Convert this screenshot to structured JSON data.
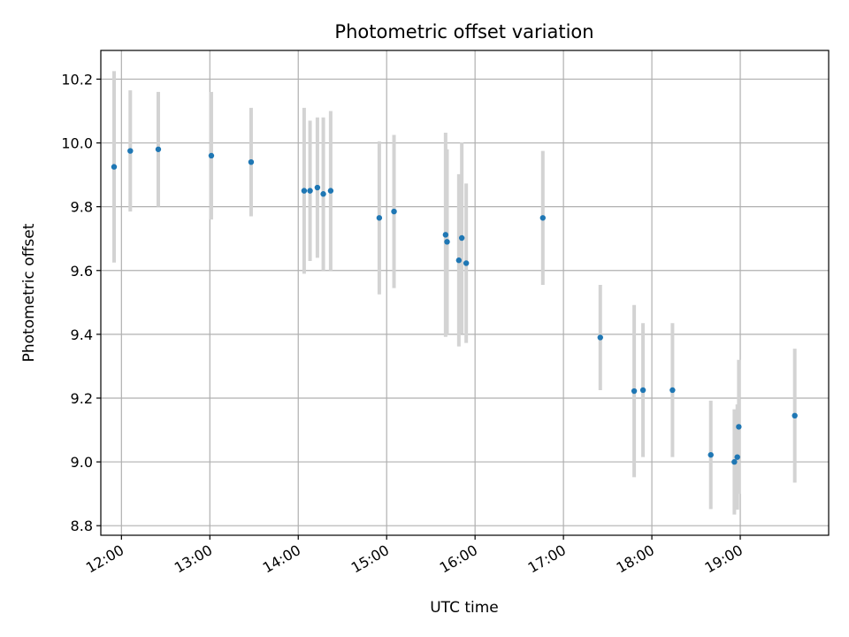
{
  "chart_data": {
    "type": "scatter",
    "title": "Photometric offset variation",
    "xlabel": "UTC time",
    "ylabel": "Photometric offset",
    "xlim": [
      "11:46",
      "20:00"
    ],
    "ylim": [
      8.77,
      10.29
    ],
    "x_ticks": [
      "12:00",
      "13:00",
      "14:00",
      "15:00",
      "16:00",
      "17:00",
      "18:00",
      "19:00"
    ],
    "y_ticks": [
      8.8,
      9.0,
      9.2,
      9.4,
      9.6,
      9.8,
      10.0,
      10.2
    ],
    "grid": true,
    "colors": {
      "point": "#1f77b4",
      "errorbar": "#d3d3d3"
    },
    "points": [
      {
        "x": "11:55",
        "y": 9.925,
        "err": 0.3
      },
      {
        "x": "12:06",
        "y": 9.975,
        "err": 0.19
      },
      {
        "x": "12:25",
        "y": 9.98,
        "err": 0.18
      },
      {
        "x": "13:01",
        "y": 9.96,
        "err": 0.2
      },
      {
        "x": "13:28",
        "y": 9.94,
        "err": 0.17
      },
      {
        "x": "14:04",
        "y": 9.85,
        "err": 0.26
      },
      {
        "x": "14:08",
        "y": 9.85,
        "err": 0.22
      },
      {
        "x": "14:13",
        "y": 9.86,
        "err": 0.22
      },
      {
        "x": "14:17",
        "y": 9.84,
        "err": 0.24
      },
      {
        "x": "14:22",
        "y": 9.85,
        "err": 0.25
      },
      {
        "x": "14:55",
        "y": 9.765,
        "err": 0.24
      },
      {
        "x": "15:05",
        "y": 9.785,
        "err": 0.24
      },
      {
        "x": "15:40",
        "y": 9.712,
        "err": 0.32
      },
      {
        "x": "15:41",
        "y": 9.69,
        "err": 0.29
      },
      {
        "x": "15:49",
        "y": 9.632,
        "err": 0.27
      },
      {
        "x": "15:51",
        "y": 9.702,
        "err": 0.3
      },
      {
        "x": "15:54",
        "y": 9.623,
        "err": 0.25
      },
      {
        "x": "16:46",
        "y": 9.765,
        "err": 0.21
      },
      {
        "x": "17:25",
        "y": 9.39,
        "err": 0.165
      },
      {
        "x": "17:48",
        "y": 9.222,
        "err": 0.27
      },
      {
        "x": "17:54",
        "y": 9.225,
        "err": 0.21
      },
      {
        "x": "18:14",
        "y": 9.225,
        "err": 0.21
      },
      {
        "x": "18:40",
        "y": 9.022,
        "err": 0.17
      },
      {
        "x": "18:56",
        "y": 9.0,
        "err": 0.165
      },
      {
        "x": "18:58",
        "y": 9.015,
        "err": 0.165
      },
      {
        "x": "18:59",
        "y": 9.11,
        "err": 0.21
      },
      {
        "x": "19:37",
        "y": 9.145,
        "err": 0.21
      }
    ]
  }
}
